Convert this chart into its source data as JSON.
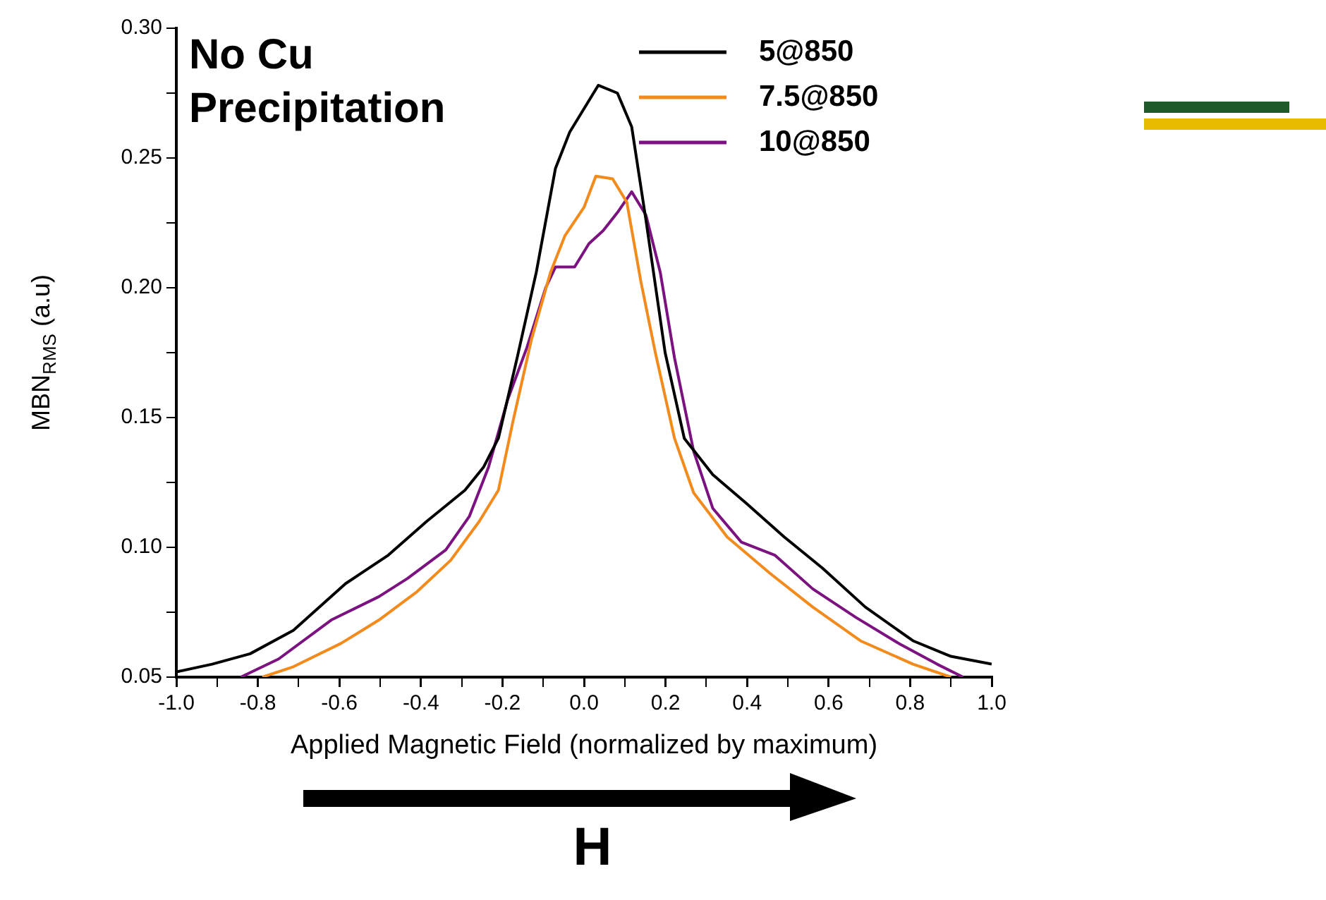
{
  "chart_data": {
    "type": "line",
    "title": "No Cu Precipitation",
    "xlabel": "Applied Magnetic Field (normalized by maximum)",
    "ylabel": "MBN$_{RMS}$ (a.u)",
    "xlim": [
      -1,
      1
    ],
    "ylim": [
      0.05,
      0.3
    ],
    "xticks": [
      {
        "value": -1,
        "label": "-1.0"
      },
      {
        "value": -0.9,
        "label": null
      },
      {
        "value": -0.8,
        "label": "-0.8"
      },
      {
        "value": -0.7,
        "label": null
      },
      {
        "value": -0.6,
        "label": "-0.6"
      },
      {
        "value": -0.5,
        "label": null
      },
      {
        "value": -0.4,
        "label": "-0.4"
      },
      {
        "value": -0.3,
        "label": null
      },
      {
        "value": -0.2,
        "label": "-0.2"
      },
      {
        "value": -0.1,
        "label": null
      },
      {
        "value": 0,
        "label": "0.0"
      },
      {
        "value": 0.1,
        "label": null
      },
      {
        "value": 0.2,
        "label": "0.2"
      },
      {
        "value": 0.3,
        "label": null
      },
      {
        "value": 0.4,
        "label": "0.4"
      },
      {
        "value": 0.5,
        "label": null
      },
      {
        "value": 0.6,
        "label": "0.6"
      },
      {
        "value": 0.7,
        "label": null
      },
      {
        "value": 0.8,
        "label": "0.8"
      },
      {
        "value": 0.9,
        "label": null
      },
      {
        "value": 1,
        "label": "1.0"
      }
    ],
    "yticks": [
      {
        "value": 0.05,
        "label": "0.05"
      },
      {
        "value": 0.075,
        "label": null
      },
      {
        "value": 0.1,
        "label": "0.10"
      },
      {
        "value": 0.125,
        "label": null
      },
      {
        "value": 0.15,
        "label": "0.15"
      },
      {
        "value": 0.175,
        "label": null
      },
      {
        "value": 0.2,
        "label": "0.20"
      },
      {
        "value": 0.225,
        "label": null
      },
      {
        "value": 0.25,
        "label": "0.25"
      },
      {
        "value": 0.275,
        "label": null
      },
      {
        "value": 0.3,
        "label": "0.30"
      }
    ],
    "grid": false,
    "legend": "top right",
    "marker": "none",
    "line_style": "solid",
    "annotations": [
      "H"
    ],
    "series": [
      {
        "name": "5@850",
        "color": "#000000",
        "x": [
          -1,
          -0.912,
          -0.819,
          -0.713,
          -0.585,
          -0.48,
          -0.386,
          -0.292,
          -0.246,
          -0.21,
          -0.164,
          -0.117,
          -0.07,
          -0.035,
          0.035,
          0.082,
          0.117,
          0.152,
          0.199,
          0.246,
          0.316,
          0.398,
          0.491,
          0.585,
          0.69,
          0.807,
          0.9,
          1
        ],
        "values": [
          0.052,
          0.055,
          0.059,
          0.068,
          0.086,
          0.097,
          0.11,
          0.122,
          0.131,
          0.142,
          0.173,
          0.206,
          0.246,
          0.26,
          0.278,
          0.275,
          0.262,
          0.226,
          0.175,
          0.142,
          0.128,
          0.117,
          0.104,
          0.092,
          0.077,
          0.064,
          0.058,
          0.055
        ]
      },
      {
        "name": "7.5@850",
        "color": "#f28a1c",
        "x": [
          -0.789,
          -0.713,
          -0.596,
          -0.503,
          -0.409,
          -0.327,
          -0.257,
          -0.21,
          -0.175,
          -0.129,
          -0.082,
          -0.047,
          0,
          0.029,
          0.07,
          0.105,
          0.14,
          0.175,
          0.222,
          0.269,
          0.351,
          0.456,
          0.561,
          0.678,
          0.807,
          0.9
        ],
        "values": [
          0.05,
          0.054,
          0.063,
          0.072,
          0.083,
          0.095,
          0.11,
          0.122,
          0.148,
          0.18,
          0.206,
          0.22,
          0.231,
          0.243,
          0.242,
          0.233,
          0.202,
          0.175,
          0.142,
          0.121,
          0.104,
          0.09,
          0.077,
          0.064,
          0.055,
          0.05
        ]
      },
      {
        "name": "10@850",
        "color": "#7b1280",
        "x": [
          -0.842,
          -0.749,
          -0.62,
          -0.503,
          -0.433,
          -0.339,
          -0.281,
          -0.234,
          -0.187,
          -0.14,
          -0.094,
          -0.07,
          -0.023,
          0.012,
          0.047,
          0.082,
          0.117,
          0.152,
          0.187,
          0.222,
          0.269,
          0.316,
          0.386,
          0.468,
          0.561,
          0.667,
          0.772,
          0.866,
          0.93
        ],
        "values": [
          0.05,
          0.057,
          0.072,
          0.081,
          0.088,
          0.099,
          0.112,
          0.131,
          0.157,
          0.177,
          0.2,
          0.208,
          0.208,
          0.217,
          0.222,
          0.229,
          0.237,
          0.228,
          0.206,
          0.173,
          0.137,
          0.115,
          0.102,
          0.097,
          0.084,
          0.073,
          0.063,
          0.055,
          0.05
        ]
      }
    ]
  }
}
